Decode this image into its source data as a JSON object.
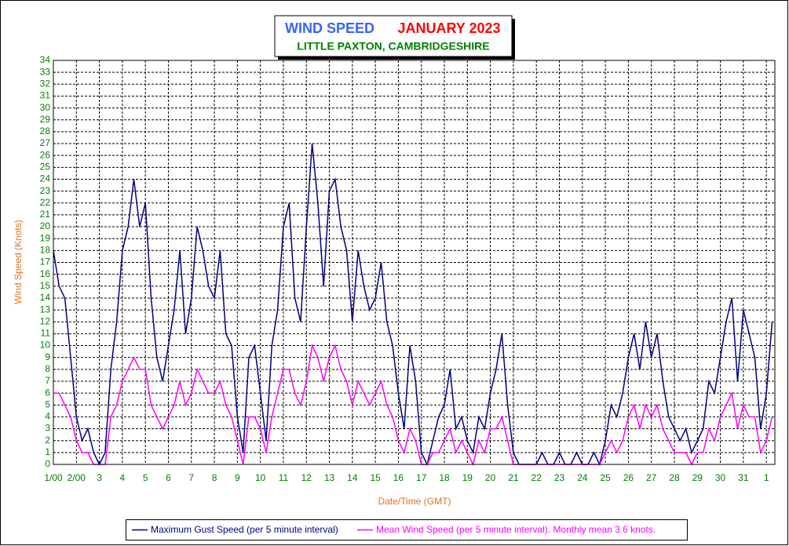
{
  "chart_data": {
    "type": "line",
    "title": "WIND SPEED",
    "title_month": "JANUARY 2023",
    "subtitle": "LITTLE PAXTON, CAMBRIDGESHIRE",
    "ylabel": "Wind Speed (Knots)",
    "xlabel": "Date/Time (GMT)",
    "grid": true,
    "legend": "bottom",
    "xlim": [
      1,
      32.37
    ],
    "ylim": [
      0,
      34
    ],
    "yticks": [
      0,
      1,
      2,
      3,
      4,
      5,
      6,
      7,
      8,
      9,
      10,
      11,
      12,
      13,
      14,
      15,
      16,
      17,
      18,
      19,
      20,
      21,
      22,
      23,
      24,
      25,
      26,
      27,
      28,
      29,
      30,
      31,
      32,
      33,
      34
    ],
    "xticks": [
      {
        "value": 1,
        "label": "1/00"
      },
      {
        "value": 2,
        "label": "2/00"
      },
      3,
      4,
      5,
      6,
      7,
      8,
      9,
      10,
      11,
      12,
      13,
      14,
      15,
      16,
      17,
      18,
      19,
      20,
      21,
      22,
      23,
      24,
      25,
      26,
      27,
      28,
      29,
      30,
      31,
      {
        "value": 32,
        "label": "1"
      }
    ],
    "x": [
      1,
      1.25,
      1.5,
      1.75,
      2,
      2.25,
      2.5,
      2.75,
      3,
      3.25,
      3.5,
      3.75,
      4,
      4.25,
      4.5,
      4.75,
      5,
      5.25,
      5.5,
      5.75,
      6,
      6.25,
      6.5,
      6.75,
      7,
      7.25,
      7.5,
      7.75,
      8,
      8.25,
      8.5,
      8.75,
      9,
      9.25,
      9.5,
      9.75,
      10,
      10.25,
      10.5,
      10.75,
      11,
      11.25,
      11.5,
      11.75,
      12,
      12.25,
      12.5,
      12.75,
      13,
      13.25,
      13.5,
      13.75,
      14,
      14.25,
      14.5,
      14.75,
      15,
      15.25,
      15.5,
      15.75,
      16,
      16.25,
      16.5,
      16.75,
      17,
      17.25,
      17.5,
      17.75,
      18,
      18.25,
      18.5,
      18.75,
      19,
      19.25,
      19.5,
      19.75,
      20,
      20.25,
      20.5,
      20.75,
      21,
      21.25,
      21.5,
      21.75,
      22,
      22.25,
      22.5,
      22.75,
      23,
      23.25,
      23.5,
      23.75,
      24,
      24.25,
      24.5,
      24.75,
      25,
      25.25,
      25.5,
      25.75,
      26,
      26.25,
      26.5,
      26.75,
      27,
      27.25,
      27.5,
      27.75,
      28,
      28.25,
      28.5,
      28.75,
      29,
      29.25,
      29.5,
      29.75,
      30,
      30.25,
      30.5,
      30.75,
      31,
      31.25,
      31.5,
      31.75,
      32,
      32.25
    ],
    "series": [
      {
        "name": "Maximum Gust Speed (per 5 minute interval)",
        "color": "#000080",
        "values": [
          18,
          15,
          14,
          9,
          4,
          2,
          3,
          1,
          0,
          1,
          8,
          12,
          18,
          20,
          24,
          20,
          22,
          14,
          9,
          7,
          10,
          13,
          18,
          11,
          14,
          20,
          18,
          15,
          14,
          18,
          11,
          10,
          4,
          1,
          9,
          10,
          6,
          2,
          10,
          13,
          20,
          22,
          14,
          12,
          20,
          27,
          22,
          15,
          23,
          24,
          20,
          18,
          12,
          18,
          15,
          13,
          14,
          17,
          12,
          10,
          6,
          3,
          10,
          7,
          1,
          0,
          2,
          4,
          5,
          8,
          3,
          4,
          2,
          1,
          4,
          3,
          6,
          8,
          11,
          5,
          1,
          0,
          0,
          0,
          0,
          1,
          0,
          0,
          1,
          0,
          0,
          1,
          0,
          0,
          1,
          0,
          2,
          5,
          4,
          6,
          9,
          11,
          8,
          12,
          9,
          11,
          7,
          4,
          3,
          2,
          3,
          1,
          2,
          3,
          7,
          6,
          9,
          12,
          14,
          7,
          13,
          11,
          9,
          3,
          6,
          12
        ]
      },
      {
        "name": "Mean Wind Speed (per 5 minute interval). Monthly mean 3.6 knots.",
        "color": "#ff00ff",
        "values": [
          6,
          6,
          5,
          4,
          2,
          1,
          1,
          0,
          0,
          0,
          4,
          5,
          7,
          8,
          9,
          8,
          8,
          5,
          4,
          3,
          4,
          5,
          7,
          5,
          6,
          8,
          7,
          6,
          6,
          7,
          5,
          4,
          2,
          0,
          4,
          4,
          3,
          1,
          4,
          6,
          8,
          8,
          6,
          5,
          7,
          10,
          9,
          7,
          9,
          10,
          8,
          7,
          5,
          7,
          6,
          5,
          6,
          7,
          5,
          4,
          2,
          1,
          3,
          2,
          0,
          0,
          1,
          1,
          2,
          3,
          1,
          2,
          1,
          0,
          2,
          1,
          3,
          3,
          4,
          2,
          0,
          0,
          0,
          0,
          0,
          0,
          0,
          0,
          0,
          0,
          0,
          0,
          0,
          0,
          0,
          0,
          1,
          2,
          1,
          2,
          4,
          5,
          3,
          5,
          4,
          5,
          3,
          2,
          1,
          1,
          1,
          0,
          1,
          1,
          3,
          2,
          4,
          5,
          6,
          3,
          5,
          4,
          4,
          1,
          2,
          4
        ]
      }
    ]
  }
}
